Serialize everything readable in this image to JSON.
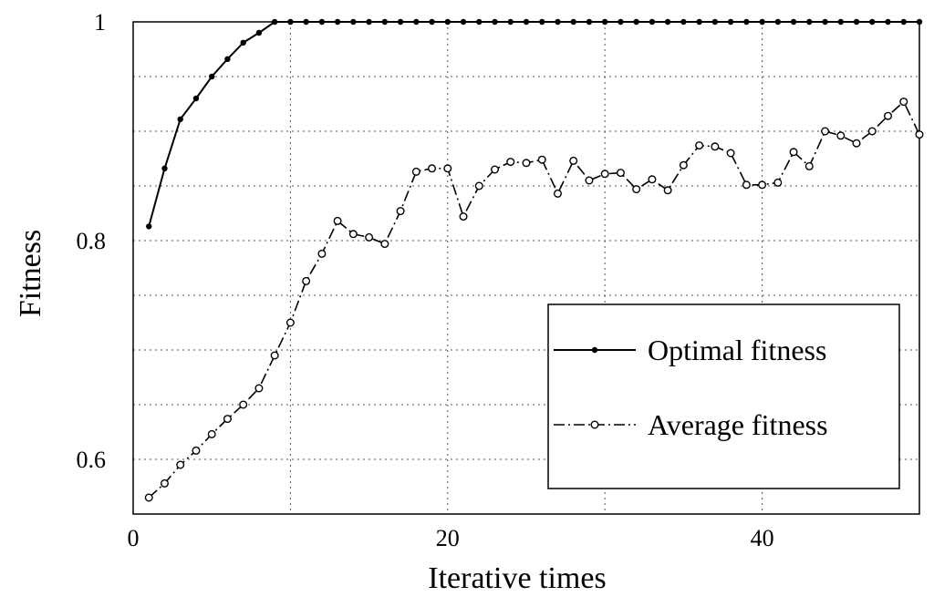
{
  "chart_data": {
    "type": "line",
    "title": "",
    "xlabel": "Iterative times",
    "ylabel": "Fitness",
    "xlim": [
      0,
      50
    ],
    "ylim": [
      0.55,
      1.0
    ],
    "xticks": [
      0,
      20,
      40
    ],
    "xtick_labels": [
      "0",
      "20",
      "40"
    ],
    "yticks": [
      0.6,
      0.8,
      1.0
    ],
    "ytick_labels": [
      "0.6",
      "0.8",
      "1"
    ],
    "grid": true,
    "legend_position": "lower-right",
    "x": [
      1,
      2,
      3,
      4,
      5,
      6,
      7,
      8,
      9,
      10,
      11,
      12,
      13,
      14,
      15,
      16,
      17,
      18,
      19,
      20,
      21,
      22,
      23,
      24,
      25,
      26,
      27,
      28,
      29,
      30,
      31,
      32,
      33,
      34,
      35,
      36,
      37,
      38,
      39,
      40,
      41,
      42,
      43,
      44,
      45,
      46,
      47,
      48,
      49,
      50
    ],
    "series": [
      {
        "name": "Optimal fitness",
        "style": "solid",
        "marker": "filled-circle",
        "values": [
          0.813,
          0.866,
          0.911,
          0.93,
          0.95,
          0.966,
          0.981,
          0.99,
          1.0,
          1.0,
          1.0,
          1.0,
          1.0,
          1.0,
          1.0,
          1.0,
          1.0,
          1.0,
          1.0,
          1.0,
          1.0,
          1.0,
          1.0,
          1.0,
          1.0,
          1.0,
          1.0,
          1.0,
          1.0,
          1.0,
          1.0,
          1.0,
          1.0,
          1.0,
          1.0,
          1.0,
          1.0,
          1.0,
          1.0,
          1.0,
          1.0,
          1.0,
          1.0,
          1.0,
          1.0,
          1.0,
          1.0,
          1.0,
          1.0,
          1.0
        ]
      },
      {
        "name": "Average fitness",
        "style": "dash-dot",
        "marker": "open-circle",
        "values": [
          0.565,
          0.578,
          0.595,
          0.608,
          0.623,
          0.637,
          0.65,
          0.665,
          0.695,
          0.725,
          0.763,
          0.788,
          0.818,
          0.806,
          0.803,
          0.797,
          0.827,
          0.863,
          0.866,
          0.866,
          0.822,
          0.85,
          0.865,
          0.872,
          0.871,
          0.874,
          0.843,
          0.873,
          0.855,
          0.861,
          0.862,
          0.847,
          0.856,
          0.846,
          0.869,
          0.887,
          0.886,
          0.88,
          0.851,
          0.851,
          0.853,
          0.881,
          0.868,
          0.9,
          0.896,
          0.889,
          0.9,
          0.914,
          0.927,
          0.897
        ]
      }
    ]
  }
}
